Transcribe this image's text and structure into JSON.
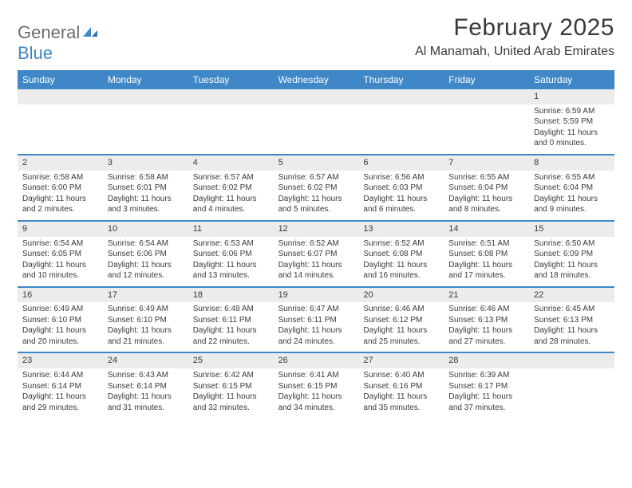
{
  "logo": {
    "text1": "General",
    "text2": "Blue"
  },
  "title": "February 2025",
  "location": "Al Manamah, United Arab Emirates",
  "colors": {
    "accent": "#3f87c7",
    "header_text": "#ffffff",
    "day_bar_bg": "#ececec",
    "text": "#3a3a3a",
    "logo_gray": "#6d6d6d"
  },
  "weekdays": [
    "Sunday",
    "Monday",
    "Tuesday",
    "Wednesday",
    "Thursday",
    "Friday",
    "Saturday"
  ],
  "weeks": [
    [
      {
        "empty": true
      },
      {
        "empty": true
      },
      {
        "empty": true
      },
      {
        "empty": true
      },
      {
        "empty": true
      },
      {
        "empty": true
      },
      {
        "day": "1",
        "sunrise": "Sunrise: 6:59 AM",
        "sunset": "Sunset: 5:59 PM",
        "d1": "Daylight: 11 hours",
        "d2": "and 0 minutes."
      }
    ],
    [
      {
        "day": "2",
        "sunrise": "Sunrise: 6:58 AM",
        "sunset": "Sunset: 6:00 PM",
        "d1": "Daylight: 11 hours",
        "d2": "and 2 minutes."
      },
      {
        "day": "3",
        "sunrise": "Sunrise: 6:58 AM",
        "sunset": "Sunset: 6:01 PM",
        "d1": "Daylight: 11 hours",
        "d2": "and 3 minutes."
      },
      {
        "day": "4",
        "sunrise": "Sunrise: 6:57 AM",
        "sunset": "Sunset: 6:02 PM",
        "d1": "Daylight: 11 hours",
        "d2": "and 4 minutes."
      },
      {
        "day": "5",
        "sunrise": "Sunrise: 6:57 AM",
        "sunset": "Sunset: 6:02 PM",
        "d1": "Daylight: 11 hours",
        "d2": "and 5 minutes."
      },
      {
        "day": "6",
        "sunrise": "Sunrise: 6:56 AM",
        "sunset": "Sunset: 6:03 PM",
        "d1": "Daylight: 11 hours",
        "d2": "and 6 minutes."
      },
      {
        "day": "7",
        "sunrise": "Sunrise: 6:55 AM",
        "sunset": "Sunset: 6:04 PM",
        "d1": "Daylight: 11 hours",
        "d2": "and 8 minutes."
      },
      {
        "day": "8",
        "sunrise": "Sunrise: 6:55 AM",
        "sunset": "Sunset: 6:04 PM",
        "d1": "Daylight: 11 hours",
        "d2": "and 9 minutes."
      }
    ],
    [
      {
        "day": "9",
        "sunrise": "Sunrise: 6:54 AM",
        "sunset": "Sunset: 6:05 PM",
        "d1": "Daylight: 11 hours",
        "d2": "and 10 minutes."
      },
      {
        "day": "10",
        "sunrise": "Sunrise: 6:54 AM",
        "sunset": "Sunset: 6:06 PM",
        "d1": "Daylight: 11 hours",
        "d2": "and 12 minutes."
      },
      {
        "day": "11",
        "sunrise": "Sunrise: 6:53 AM",
        "sunset": "Sunset: 6:06 PM",
        "d1": "Daylight: 11 hours",
        "d2": "and 13 minutes."
      },
      {
        "day": "12",
        "sunrise": "Sunrise: 6:52 AM",
        "sunset": "Sunset: 6:07 PM",
        "d1": "Daylight: 11 hours",
        "d2": "and 14 minutes."
      },
      {
        "day": "13",
        "sunrise": "Sunrise: 6:52 AM",
        "sunset": "Sunset: 6:08 PM",
        "d1": "Daylight: 11 hours",
        "d2": "and 16 minutes."
      },
      {
        "day": "14",
        "sunrise": "Sunrise: 6:51 AM",
        "sunset": "Sunset: 6:08 PM",
        "d1": "Daylight: 11 hours",
        "d2": "and 17 minutes."
      },
      {
        "day": "15",
        "sunrise": "Sunrise: 6:50 AM",
        "sunset": "Sunset: 6:09 PM",
        "d1": "Daylight: 11 hours",
        "d2": "and 18 minutes."
      }
    ],
    [
      {
        "day": "16",
        "sunrise": "Sunrise: 6:49 AM",
        "sunset": "Sunset: 6:10 PM",
        "d1": "Daylight: 11 hours",
        "d2": "and 20 minutes."
      },
      {
        "day": "17",
        "sunrise": "Sunrise: 6:49 AM",
        "sunset": "Sunset: 6:10 PM",
        "d1": "Daylight: 11 hours",
        "d2": "and 21 minutes."
      },
      {
        "day": "18",
        "sunrise": "Sunrise: 6:48 AM",
        "sunset": "Sunset: 6:11 PM",
        "d1": "Daylight: 11 hours",
        "d2": "and 22 minutes."
      },
      {
        "day": "19",
        "sunrise": "Sunrise: 6:47 AM",
        "sunset": "Sunset: 6:11 PM",
        "d1": "Daylight: 11 hours",
        "d2": "and 24 minutes."
      },
      {
        "day": "20",
        "sunrise": "Sunrise: 6:46 AM",
        "sunset": "Sunset: 6:12 PM",
        "d1": "Daylight: 11 hours",
        "d2": "and 25 minutes."
      },
      {
        "day": "21",
        "sunrise": "Sunrise: 6:46 AM",
        "sunset": "Sunset: 6:13 PM",
        "d1": "Daylight: 11 hours",
        "d2": "and 27 minutes."
      },
      {
        "day": "22",
        "sunrise": "Sunrise: 6:45 AM",
        "sunset": "Sunset: 6:13 PM",
        "d1": "Daylight: 11 hours",
        "d2": "and 28 minutes."
      }
    ],
    [
      {
        "day": "23",
        "sunrise": "Sunrise: 6:44 AM",
        "sunset": "Sunset: 6:14 PM",
        "d1": "Daylight: 11 hours",
        "d2": "and 29 minutes."
      },
      {
        "day": "24",
        "sunrise": "Sunrise: 6:43 AM",
        "sunset": "Sunset: 6:14 PM",
        "d1": "Daylight: 11 hours",
        "d2": "and 31 minutes."
      },
      {
        "day": "25",
        "sunrise": "Sunrise: 6:42 AM",
        "sunset": "Sunset: 6:15 PM",
        "d1": "Daylight: 11 hours",
        "d2": "and 32 minutes."
      },
      {
        "day": "26",
        "sunrise": "Sunrise: 6:41 AM",
        "sunset": "Sunset: 6:15 PM",
        "d1": "Daylight: 11 hours",
        "d2": "and 34 minutes."
      },
      {
        "day": "27",
        "sunrise": "Sunrise: 6:40 AM",
        "sunset": "Sunset: 6:16 PM",
        "d1": "Daylight: 11 hours",
        "d2": "and 35 minutes."
      },
      {
        "day": "28",
        "sunrise": "Sunrise: 6:39 AM",
        "sunset": "Sunset: 6:17 PM",
        "d1": "Daylight: 11 hours",
        "d2": "and 37 minutes."
      },
      {
        "empty": true
      }
    ]
  ]
}
